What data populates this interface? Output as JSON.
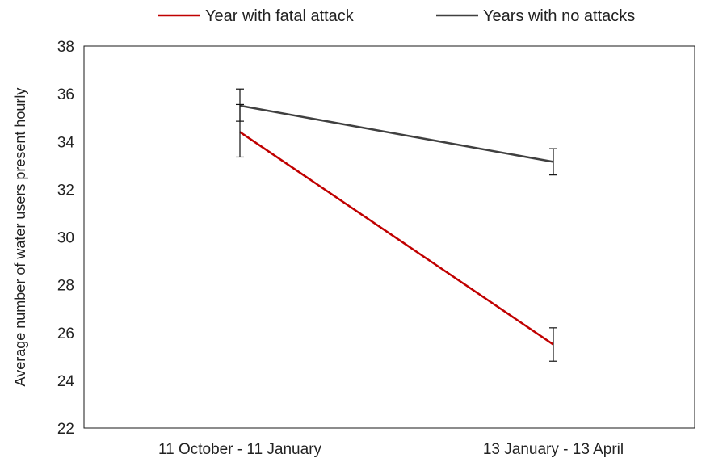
{
  "chart_data": {
    "type": "line",
    "title": "",
    "xlabel": "",
    "ylabel": "Average number of water users present hourly",
    "categories": [
      "11 October - 11 January",
      "13 January - 13 April"
    ],
    "ylim": [
      22,
      38
    ],
    "yticks": [
      22,
      24,
      26,
      28,
      30,
      32,
      34,
      36,
      38
    ],
    "grid": false,
    "legend_position": "top",
    "series": [
      {
        "name": "Year with fatal attack",
        "color": "#c00000",
        "values": [
          34.4,
          25.5
        ],
        "error": [
          [
            33.35,
            35.55
          ],
          [
            24.8,
            26.2
          ]
        ]
      },
      {
        "name": "Years with no attacks",
        "color": "#404040",
        "values": [
          35.5,
          33.15
        ],
        "error": [
          [
            34.85,
            36.2
          ],
          [
            32.6,
            33.7
          ]
        ]
      }
    ]
  }
}
